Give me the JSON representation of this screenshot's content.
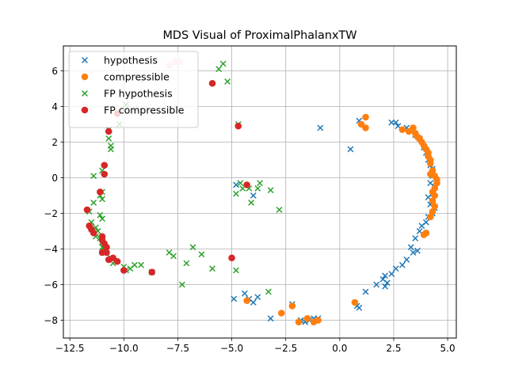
{
  "chart_data": {
    "type": "scatter",
    "title": "MDS Visual of ProximalPhalanxTW",
    "xlabel": "",
    "ylabel": "",
    "xlim": [
      -12.8,
      5.4
    ],
    "ylim": [
      -9.0,
      7.4
    ],
    "xticks": [
      -12.5,
      -10.0,
      -7.5,
      -5.0,
      -2.5,
      0.0,
      2.5,
      5.0
    ],
    "xtick_labels": [
      "−12.5",
      "−10.0",
      "−7.5",
      "−5.0",
      "−2.5",
      "0.0",
      "2.5",
      "5.0"
    ],
    "yticks": [
      -8,
      -6,
      -4,
      -2,
      0,
      2,
      4,
      6
    ],
    "ytick_labels": [
      "−8",
      "−6",
      "−4",
      "−2",
      "0",
      "2",
      "4",
      "6"
    ],
    "grid": true,
    "legend_position": "top-left",
    "series": [
      {
        "name": "hypothesis",
        "marker": "x",
        "color": "#1f77b4",
        "points": [
          [
            -0.9,
            2.8
          ],
          [
            0.5,
            1.6
          ],
          [
            0.9,
            3.2
          ],
          [
            2.4,
            3.1
          ],
          [
            2.6,
            3.1
          ],
          [
            2.7,
            2.9
          ],
          [
            3.1,
            2.8
          ],
          [
            3.3,
            2.6
          ],
          [
            3.5,
            2.4
          ],
          [
            3.7,
            2.2
          ],
          [
            3.9,
            1.7
          ],
          [
            4.0,
            1.4
          ],
          [
            4.1,
            1.0
          ],
          [
            4.2,
            0.7
          ],
          [
            4.3,
            0.5
          ],
          [
            4.3,
            0.1
          ],
          [
            4.2,
            -0.3
          ],
          [
            4.4,
            -0.5
          ],
          [
            4.3,
            -0.9
          ],
          [
            4.1,
            -1.1
          ],
          [
            4.2,
            -1.5
          ],
          [
            4.4,
            -1.7
          ],
          [
            4.3,
            -2.0
          ],
          [
            4.1,
            -2.2
          ],
          [
            4.0,
            -2.5
          ],
          [
            3.8,
            -2.7
          ],
          [
            3.7,
            -3.0
          ],
          [
            3.5,
            -3.4
          ],
          [
            3.3,
            -3.9
          ],
          [
            3.6,
            -4.1
          ],
          [
            3.4,
            -4.2
          ],
          [
            3.1,
            -4.6
          ],
          [
            2.9,
            -4.9
          ],
          [
            2.6,
            -5.1
          ],
          [
            2.4,
            -5.4
          ],
          [
            2.1,
            -5.5
          ],
          [
            2.0,
            -5.7
          ],
          [
            2.2,
            -5.9
          ],
          [
            2.1,
            -6.1
          ],
          [
            1.7,
            -6.0
          ],
          [
            1.2,
            -6.4
          ],
          [
            0.8,
            -7.2
          ],
          [
            0.9,
            -7.3
          ],
          [
            -1.0,
            -7.9
          ],
          [
            -1.2,
            -7.9
          ],
          [
            -1.4,
            -8.0
          ],
          [
            -1.6,
            -8.1
          ],
          [
            -1.8,
            -8.0
          ],
          [
            -2.2,
            -7.1
          ],
          [
            -3.2,
            -7.9
          ],
          [
            -4.0,
            -7.0
          ],
          [
            -4.2,
            -6.8
          ],
          [
            -4.4,
            -6.5
          ],
          [
            -3.8,
            -6.7
          ],
          [
            -4.9,
            -6.8
          ],
          [
            -4.8,
            -0.4
          ],
          [
            -4.0,
            -1.0
          ]
        ]
      },
      {
        "name": "compressible",
        "marker": "o",
        "color": "#ff7f0e",
        "points": [
          [
            1.2,
            3.4
          ],
          [
            1.0,
            3.0
          ],
          [
            1.2,
            2.8
          ],
          [
            2.9,
            2.7
          ],
          [
            3.2,
            2.6
          ],
          [
            3.4,
            2.8
          ],
          [
            3.5,
            2.5
          ],
          [
            3.6,
            2.3
          ],
          [
            3.7,
            2.2
          ],
          [
            3.8,
            2.0
          ],
          [
            3.9,
            1.8
          ],
          [
            4.0,
            1.6
          ],
          [
            4.1,
            1.4
          ],
          [
            4.1,
            1.2
          ],
          [
            4.2,
            1.0
          ],
          [
            4.2,
            0.8
          ],
          [
            4.3,
            0.4
          ],
          [
            4.2,
            0.2
          ],
          [
            4.4,
            0.1
          ],
          [
            4.5,
            -0.1
          ],
          [
            4.5,
            -0.3
          ],
          [
            4.4,
            -0.6
          ],
          [
            4.3,
            -0.8
          ],
          [
            4.4,
            -1.0
          ],
          [
            4.3,
            -1.3
          ],
          [
            4.4,
            -1.6
          ],
          [
            4.3,
            -1.9
          ],
          [
            4.2,
            -2.2
          ],
          [
            4.0,
            -3.1
          ],
          [
            3.9,
            -3.2
          ],
          [
            0.7,
            -7.0
          ],
          [
            -1.0,
            -8.0
          ],
          [
            -1.2,
            -8.1
          ],
          [
            -1.5,
            -7.9
          ],
          [
            -1.9,
            -8.1
          ],
          [
            -2.2,
            -7.2
          ],
          [
            -2.7,
            -7.6
          ],
          [
            -4.3,
            -6.9
          ]
        ]
      },
      {
        "name": "FP hypothesis",
        "marker": "x",
        "color": "#2ca02c",
        "points": [
          [
            -5.4,
            6.4
          ],
          [
            -5.6,
            6.1
          ],
          [
            -5.2,
            5.4
          ],
          [
            -4.7,
            3.0
          ],
          [
            -9.9,
            4.1
          ],
          [
            -10.2,
            3.0
          ],
          [
            -10.7,
            2.7
          ],
          [
            -10.7,
            2.2
          ],
          [
            -10.6,
            1.8
          ],
          [
            -10.6,
            1.6
          ],
          [
            -11.4,
            0.1
          ],
          [
            -11.0,
            0.4
          ],
          [
            -11.0,
            -0.8
          ],
          [
            -11.1,
            -1.0
          ],
          [
            -11.0,
            -1.2
          ],
          [
            -11.4,
            -1.4
          ],
          [
            -11.6,
            -1.9
          ],
          [
            -11.1,
            -2.1
          ],
          [
            -11.0,
            -2.3
          ],
          [
            -11.5,
            -2.5
          ],
          [
            -11.3,
            -2.8
          ],
          [
            -11.2,
            -3.0
          ],
          [
            -11.3,
            -3.3
          ],
          [
            -11.1,
            -3.4
          ],
          [
            -11.0,
            -3.6
          ],
          [
            -11.0,
            -3.9
          ],
          [
            -10.9,
            -4.1
          ],
          [
            -10.6,
            -4.5
          ],
          [
            -10.5,
            -4.8
          ],
          [
            -10.0,
            -5.0
          ],
          [
            -9.9,
            -5.2
          ],
          [
            -9.7,
            -5.1
          ],
          [
            -9.5,
            -4.9
          ],
          [
            -9.2,
            -4.9
          ],
          [
            -8.7,
            -5.3
          ],
          [
            -7.9,
            -4.2
          ],
          [
            -7.7,
            -4.4
          ],
          [
            -7.3,
            -6.0
          ],
          [
            -7.1,
            -4.8
          ],
          [
            -6.8,
            -3.9
          ],
          [
            -6.4,
            -4.3
          ],
          [
            -5.9,
            -5.1
          ],
          [
            -4.8,
            -5.2
          ],
          [
            -4.8,
            -0.9
          ],
          [
            -4.6,
            -0.3
          ],
          [
            -4.5,
            -0.6
          ],
          [
            -4.2,
            -0.6
          ],
          [
            -4.1,
            -1.4
          ],
          [
            -3.8,
            -0.6
          ],
          [
            -3.7,
            -0.3
          ],
          [
            -3.2,
            -0.7
          ],
          [
            -3.3,
            -6.4
          ],
          [
            -2.8,
            -1.8
          ]
        ]
      },
      {
        "name": "FP compressible",
        "marker": "o",
        "color": "#d62728",
        "points": [
          [
            -5.9,
            5.3
          ],
          [
            -4.7,
            2.9
          ],
          [
            -10.3,
            3.6
          ],
          [
            -10.7,
            2.6
          ],
          [
            -10.9,
            0.7
          ],
          [
            -10.9,
            0.2
          ],
          [
            -11.1,
            -0.8
          ],
          [
            -11.7,
            -1.8
          ],
          [
            -11.6,
            -2.7
          ],
          [
            -11.5,
            -2.9
          ],
          [
            -11.4,
            -3.1
          ],
          [
            -11.0,
            -3.3
          ],
          [
            -11.0,
            -3.5
          ],
          [
            -10.9,
            -3.7
          ],
          [
            -10.8,
            -3.9
          ],
          [
            -11.0,
            -4.2
          ],
          [
            -10.8,
            -4.2
          ],
          [
            -10.7,
            -4.6
          ],
          [
            -10.5,
            -4.5
          ],
          [
            -10.3,
            -4.7
          ],
          [
            -10.0,
            -5.2
          ],
          [
            -8.7,
            -5.3
          ],
          [
            -4.3,
            -0.4
          ],
          [
            -5.0,
            -4.5
          ]
        ]
      },
      {
        "name": "",
        "marker": "o",
        "color": "#f7c9c9",
        "points": [
          [
            -7.6,
            6.5
          ],
          [
            -7.9,
            6.3
          ],
          [
            -7.4,
            6.5
          ],
          [
            -9.2,
            5.5
          ]
        ]
      }
    ]
  }
}
